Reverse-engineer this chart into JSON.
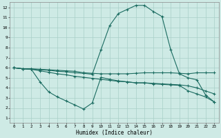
{
  "xlabel": "Humidex (Indice chaleur)",
  "bg_color": "#ceeae5",
  "grid_color": "#a8cfc8",
  "line_color": "#1a6b60",
  "xlim": [
    -0.5,
    23.5
  ],
  "ylim": [
    0.5,
    12.5
  ],
  "xticks": [
    0,
    1,
    2,
    3,
    4,
    5,
    6,
    7,
    8,
    9,
    10,
    11,
    12,
    13,
    14,
    15,
    16,
    17,
    18,
    19,
    20,
    21,
    22,
    23
  ],
  "yticks": [
    1,
    2,
    3,
    4,
    5,
    6,
    7,
    8,
    9,
    10,
    11,
    12
  ],
  "line1_x": [
    0,
    1,
    2,
    3,
    4,
    5,
    6,
    7,
    8,
    9,
    10,
    11,
    12,
    13,
    14,
    15,
    16,
    17,
    18,
    19,
    20,
    21,
    22,
    23
  ],
  "line1_y": [
    6.0,
    5.9,
    5.9,
    5.85,
    5.8,
    5.75,
    5.7,
    5.65,
    5.5,
    5.45,
    5.4,
    5.4,
    5.4,
    5.4,
    5.45,
    5.5,
    5.5,
    5.5,
    5.5,
    5.45,
    5.4,
    5.5,
    5.5,
    5.5
  ],
  "line2_x": [
    0,
    1,
    2,
    3,
    4,
    5,
    6,
    7,
    8,
    9,
    10,
    11,
    12,
    13,
    14,
    15,
    16,
    17,
    18,
    19,
    20,
    21,
    22,
    23
  ],
  "line2_y": [
    6.0,
    5.9,
    5.85,
    5.7,
    5.55,
    5.4,
    5.3,
    5.15,
    5.05,
    4.95,
    4.85,
    4.75,
    4.65,
    4.6,
    4.5,
    4.5,
    4.45,
    4.4,
    4.35,
    4.3,
    4.2,
    4.0,
    3.7,
    3.4
  ],
  "line3_x": [
    0,
    1,
    2,
    3,
    4,
    5,
    6,
    7,
    8,
    9,
    10,
    11,
    12,
    13,
    14,
    15,
    16,
    17,
    18,
    19,
    20,
    21,
    22,
    23
  ],
  "line3_y": [
    6.0,
    5.9,
    5.85,
    4.6,
    3.6,
    3.1,
    2.7,
    2.3,
    1.9,
    2.5,
    5.05,
    4.85,
    4.7,
    4.6,
    4.5,
    4.5,
    4.4,
    4.35,
    4.3,
    4.25,
    3.7,
    3.4,
    3.1,
    2.6
  ],
  "line4_x": [
    0,
    1,
    2,
    3,
    4,
    5,
    6,
    7,
    8,
    9,
    10,
    11,
    12,
    13,
    14,
    15,
    16,
    17,
    18,
    19,
    20,
    21,
    22,
    23
  ],
  "line4_y": [
    6.0,
    5.9,
    5.85,
    5.8,
    5.75,
    5.65,
    5.6,
    5.5,
    5.45,
    5.35,
    7.8,
    10.2,
    11.4,
    11.8,
    12.2,
    12.2,
    11.6,
    11.1,
    7.8,
    5.4,
    5.0,
    4.8,
    3.3,
    2.6
  ]
}
